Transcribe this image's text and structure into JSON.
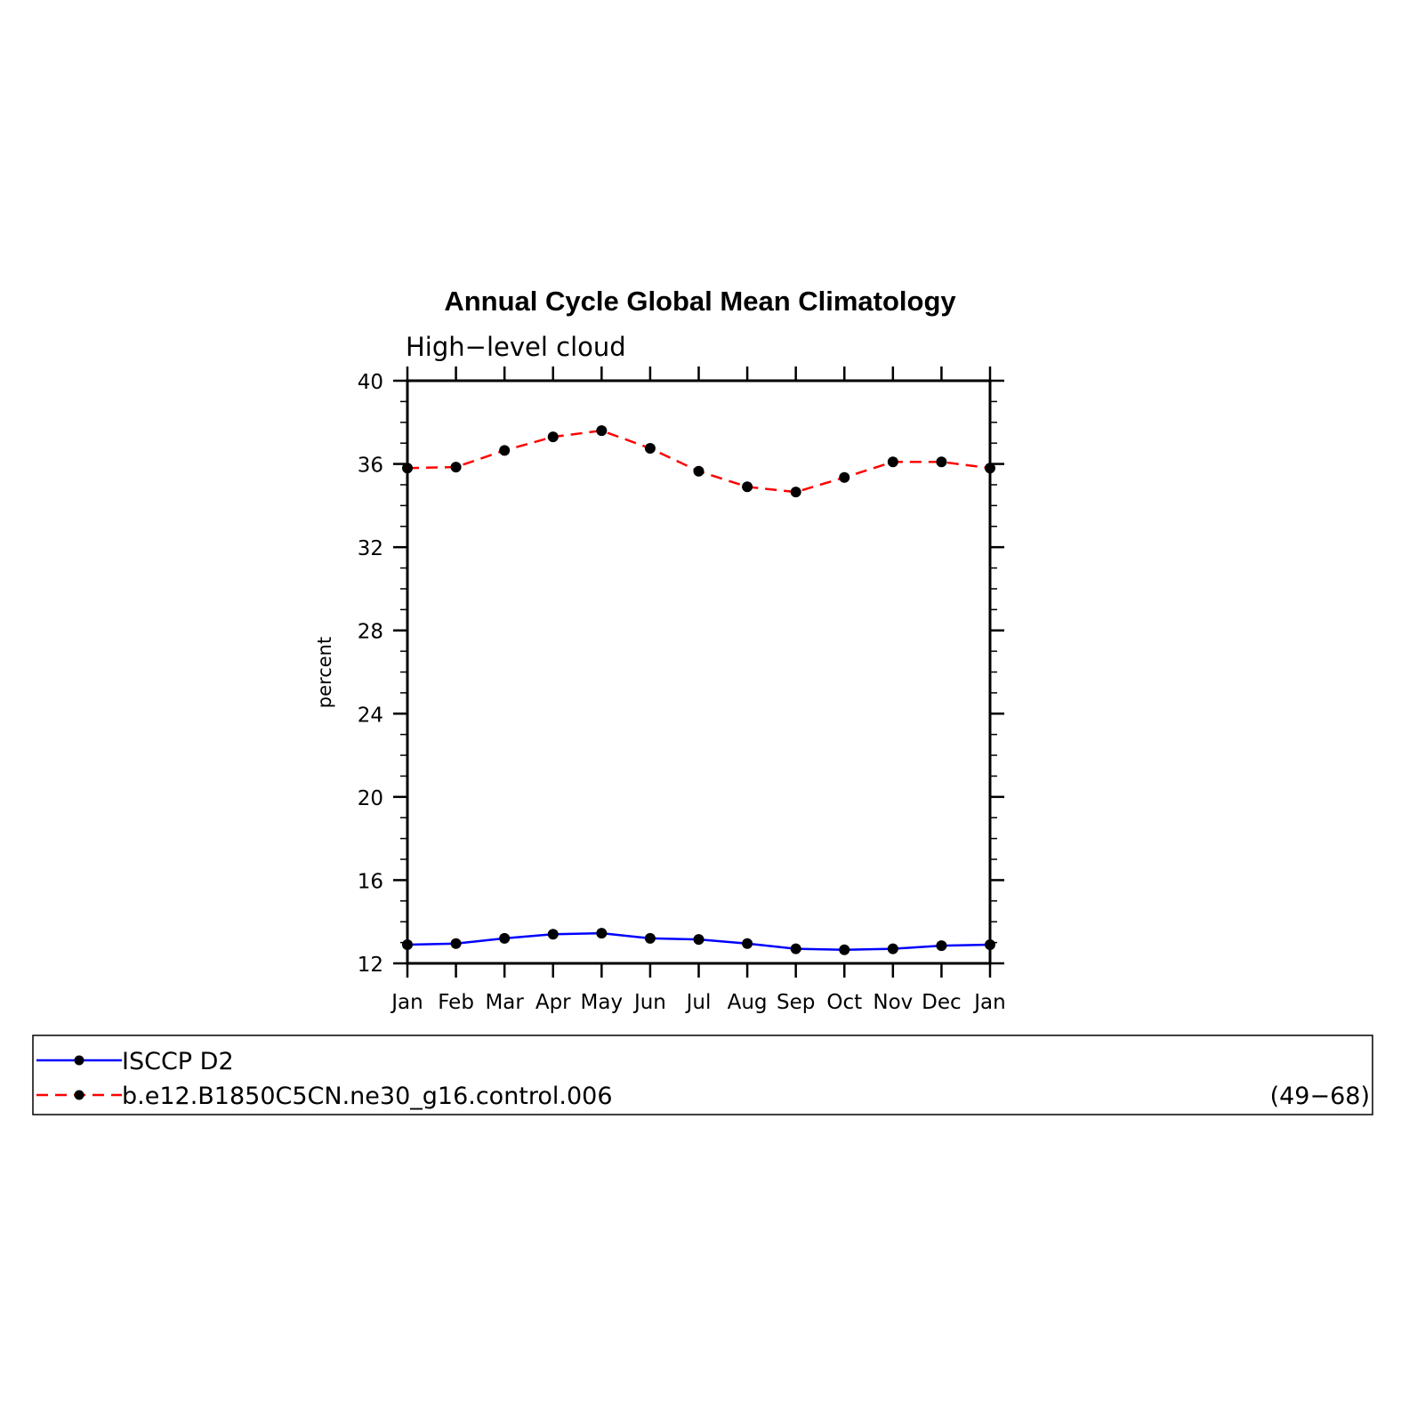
{
  "chart_data": {
    "type": "line",
    "title": "Annual Cycle Global Mean Climatology",
    "subtitle": "High−level cloud",
    "ylabel": "percent",
    "xlabel": "",
    "categories": [
      "Jan",
      "Feb",
      "Mar",
      "Apr",
      "May",
      "Jun",
      "Jul",
      "Aug",
      "Sep",
      "Oct",
      "Nov",
      "Dec",
      "Jan"
    ],
    "ylim": [
      12,
      40
    ],
    "yticks": [
      12,
      16,
      20,
      24,
      28,
      32,
      36,
      40
    ],
    "series": [
      {
        "name": "ISCCP D2",
        "color": "#0000ff",
        "dash": "solid",
        "marker": "filled-circle",
        "values": [
          12.9,
          12.95,
          13.2,
          13.4,
          13.45,
          13.2,
          13.15,
          12.95,
          12.7,
          12.65,
          12.7,
          12.85,
          12.9
        ]
      },
      {
        "name": "b.e12.B1850C5CN.ne30_g16.control.006",
        "color": "#ff0000",
        "dash": "dashed",
        "marker": "filled-circle",
        "values": [
          35.8,
          35.85,
          36.65,
          37.3,
          37.6,
          36.75,
          35.65,
          34.9,
          34.65,
          35.35,
          36.1,
          36.1,
          35.8
        ]
      }
    ],
    "legend": {
      "placement": "bottom",
      "note": "(49−68)"
    },
    "grid": false
  }
}
